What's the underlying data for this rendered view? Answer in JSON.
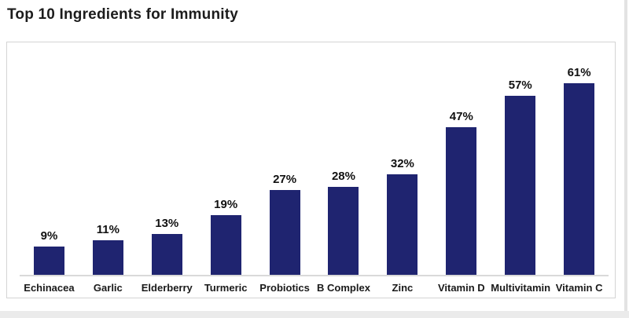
{
  "page": {
    "title": "Top 10 Ingredients for Immunity"
  },
  "chart_data": {
    "type": "bar",
    "title": "Top 10 Ingredients for Immunity",
    "categories": [
      "Echinacea",
      "Garlic",
      "Elderberry",
      "Turmeric",
      "Probiotics",
      "B Complex",
      "Zinc",
      "Vitamin D",
      "Multivitamin",
      "Vitamin C"
    ],
    "values": [
      9,
      11,
      13,
      19,
      27,
      28,
      32,
      47,
      57,
      61
    ],
    "value_labels": [
      "9%",
      "11%",
      "13%",
      "19%",
      "27%",
      "28%",
      "32%",
      "47%",
      "57%",
      "61%"
    ],
    "unit": "%",
    "xlabel": "",
    "ylabel": "",
    "ylim": [
      0,
      68
    ],
    "grid": false,
    "legend": false,
    "value_labels_position": "above-bars",
    "bar_color": "#1F2470",
    "axis_line_color": "#d9d9d9",
    "card_border_color": "#d4d4d4"
  }
}
